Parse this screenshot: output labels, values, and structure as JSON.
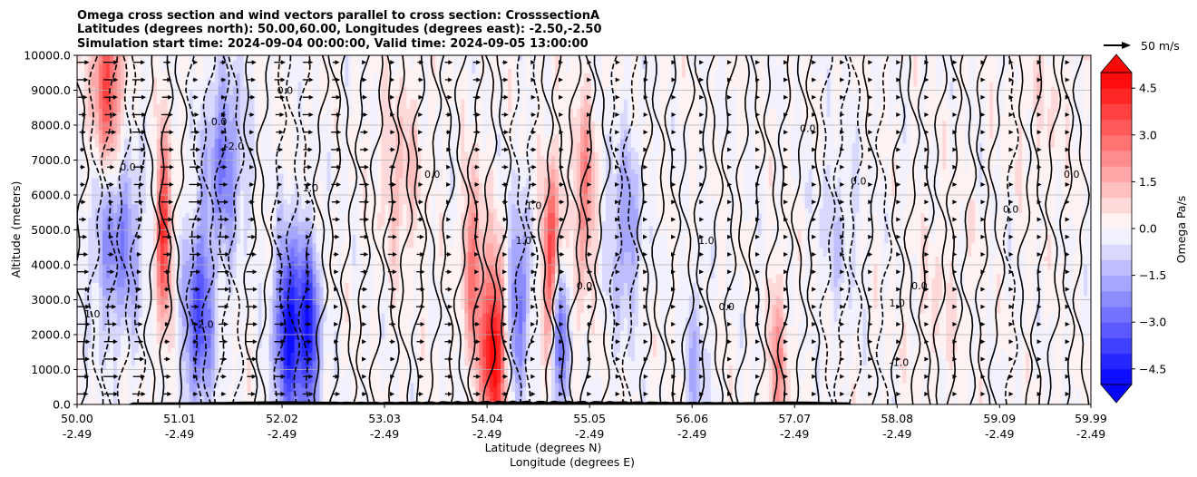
{
  "chart_data": {
    "type": "heatmap",
    "title_lines": [
      "Omega cross section and wind vectors parallel to cross section: CrosssectionA",
      "Latitudes (degrees north): 50.00,60.00, Longitudes (degrees east): -2.50,-2.50",
      "Simulation start time: 2024-09-04 00:00:00, Valid time: 2024-09-05 13:00:00"
    ],
    "ylabel": "Altitude (meters)",
    "xlabel_line1": "Latitude (degrees N)",
    "xlabel_line2": "Longitude (degrees E)",
    "xlim": [
      50.0,
      59.99
    ],
    "ylim": [
      0,
      10000
    ],
    "grid": "horizontal",
    "x_ticks": [
      {
        "lat": "50.00",
        "lon": "-2.49",
        "value": 50.0
      },
      {
        "lat": "51.01",
        "lon": "-2.49",
        "value": 51.01
      },
      {
        "lat": "52.02",
        "lon": "-2.49",
        "value": 52.02
      },
      {
        "lat": "53.03",
        "lon": "-2.49",
        "value": 53.03
      },
      {
        "lat": "54.04",
        "lon": "-2.49",
        "value": 54.04
      },
      {
        "lat": "55.05",
        "lon": "-2.49",
        "value": 55.05
      },
      {
        "lat": "56.06",
        "lon": "-2.49",
        "value": 56.06
      },
      {
        "lat": "57.07",
        "lon": "-2.49",
        "value": 57.07
      },
      {
        "lat": "58.08",
        "lon": "-2.49",
        "value": 58.08
      },
      {
        "lat": "59.09",
        "lon": "-2.49",
        "value": 59.09
      },
      {
        "lat": "59.99",
        "lon": "-2.49",
        "value": 59.99
      }
    ],
    "y_ticks": [
      {
        "label": "0.0",
        "value": 0
      },
      {
        "label": "1000.0",
        "value": 1000
      },
      {
        "label": "2000.0",
        "value": 2000
      },
      {
        "label": "3000.0",
        "value": 3000
      },
      {
        "label": "4000.0",
        "value": 4000
      },
      {
        "label": "5000.0",
        "value": 5000
      },
      {
        "label": "6000.0",
        "value": 6000
      },
      {
        "label": "7000.0",
        "value": 7000
      },
      {
        "label": "8000.0",
        "value": 8000
      },
      {
        "label": "9000.0",
        "value": 9000
      },
      {
        "label": "10000.0",
        "value": 10000
      }
    ],
    "colorbar": {
      "label": "Omega Pa/s",
      "range": [
        -5,
        5
      ],
      "extend": "both",
      "ticks": [
        {
          "label": "4.5",
          "value": 4.5
        },
        {
          "label": "3.0",
          "value": 3.0
        },
        {
          "label": "1.5",
          "value": 1.5
        },
        {
          "label": "0.0",
          "value": 0.0
        },
        {
          "label": "−1.5",
          "value": -1.5
        },
        {
          "label": "−3.0",
          "value": -3.0
        },
        {
          "label": "−4.5",
          "value": -4.5
        }
      ],
      "colormap": "bwr"
    },
    "quiver_key": {
      "label": "50 m/s"
    },
    "field_features": [
      {
        "x": 50.3,
        "width": 0.15,
        "z": 9200,
        "amp": 3.5
      },
      {
        "x": 50.4,
        "width": 0.25,
        "z": 4700,
        "amp": -2.5
      },
      {
        "x": 50.85,
        "width": 0.08,
        "z": 5000,
        "amp": 4.0
      },
      {
        "x": 51.2,
        "width": 0.15,
        "z": 2500,
        "amp": -3.5
      },
      {
        "x": 51.45,
        "width": 0.2,
        "z": 7000,
        "amp": -2.5
      },
      {
        "x": 52.1,
        "width": 0.15,
        "z": 2200,
        "amp": -4.8
      },
      {
        "x": 52.3,
        "width": 0.1,
        "z": 2000,
        "amp": -3.5
      },
      {
        "x": 53.2,
        "width": 0.2,
        "z": 6500,
        "amp": 1.2
      },
      {
        "x": 53.9,
        "width": 0.1,
        "z": 4000,
        "amp": 2.5
      },
      {
        "x": 54.1,
        "width": 0.12,
        "z": 1500,
        "amp": 5.0
      },
      {
        "x": 54.35,
        "width": 0.1,
        "z": 3000,
        "amp": -3.0
      },
      {
        "x": 54.7,
        "width": 0.1,
        "z": 4000,
        "amp": 5.0
      },
      {
        "x": 54.75,
        "width": 0.08,
        "z": 2500,
        "amp": -5.0
      },
      {
        "x": 55.0,
        "width": 0.1,
        "z": 6000,
        "amp": 2.5
      },
      {
        "x": 55.4,
        "width": 0.15,
        "z": 5000,
        "amp": -2.0
      },
      {
        "x": 56.1,
        "width": 0.1,
        "z": 1000,
        "amp": -1.5
      },
      {
        "x": 56.9,
        "width": 0.1,
        "z": 900,
        "amp": 2.0
      },
      {
        "x": 57.5,
        "width": 0.2,
        "z": 5000,
        "amp": -0.8
      },
      {
        "x": 58.5,
        "width": 0.3,
        "z": 3000,
        "amp": 0.5
      },
      {
        "x": 59.5,
        "width": 0.3,
        "z": 8500,
        "amp": 0.5
      }
    ],
    "contour_labels": [
      {
        "text": "1.0",
        "x": 50.15,
        "z": 2500
      },
      {
        "text": "0.0",
        "x": 50.5,
        "z": 6700
      },
      {
        "text": "-2.0",
        "x": 51.25,
        "z": 2200
      },
      {
        "text": "0.0",
        "x": 51.4,
        "z": 8000
      },
      {
        "text": "-2.0",
        "x": 51.55,
        "z": 7300
      },
      {
        "text": "0.0",
        "x": 52.05,
        "z": 8900
      },
      {
        "text": "1.0",
        "x": 52.3,
        "z": 6100
      },
      {
        "text": "0.0",
        "x": 53.5,
        "z": 6500
      },
      {
        "text": "1.0",
        "x": 54.5,
        "z": 5600
      },
      {
        "text": "1.0",
        "x": 54.4,
        "z": 4600
      },
      {
        "text": "0.0",
        "x": 55.0,
        "z": 3300
      },
      {
        "text": "1.0",
        "x": 56.2,
        "z": 4600
      },
      {
        "text": "0.0",
        "x": 56.4,
        "z": 2700
      },
      {
        "text": "0.0",
        "x": 57.2,
        "z": 7800
      },
      {
        "text": "0.0",
        "x": 57.7,
        "z": 6300
      },
      {
        "text": "1.0",
        "x": 58.08,
        "z": 2800
      },
      {
        "text": "0.0",
        "x": 58.3,
        "z": 3300
      },
      {
        "text": "0.0",
        "x": 59.2,
        "z": 5500
      },
      {
        "text": "0.0",
        "x": 59.8,
        "z": 6500
      },
      {
        "text": "-1.0",
        "x": 58.1,
        "z": 1100
      }
    ]
  }
}
